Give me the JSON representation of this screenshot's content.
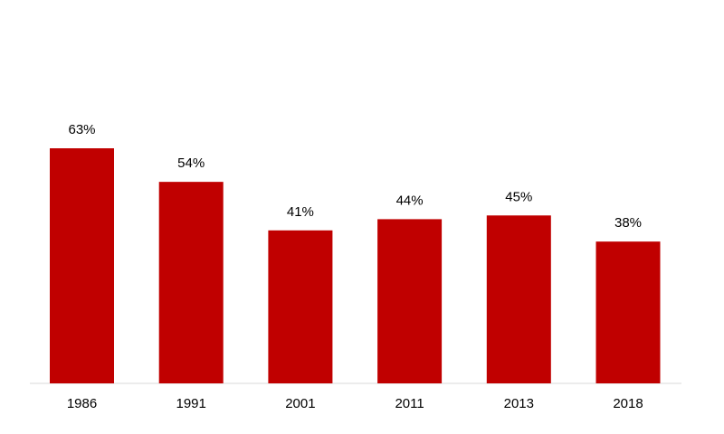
{
  "chart_data": {
    "type": "bar",
    "categories": [
      "1986",
      "1991",
      "2001",
      "2011",
      "2013",
      "2018"
    ],
    "values": [
      63,
      54,
      41,
      44,
      45,
      38
    ],
    "value_labels": [
      "63%",
      "54%",
      "41%",
      "44%",
      "45%",
      "38%"
    ],
    "color": "#c00000"
  }
}
